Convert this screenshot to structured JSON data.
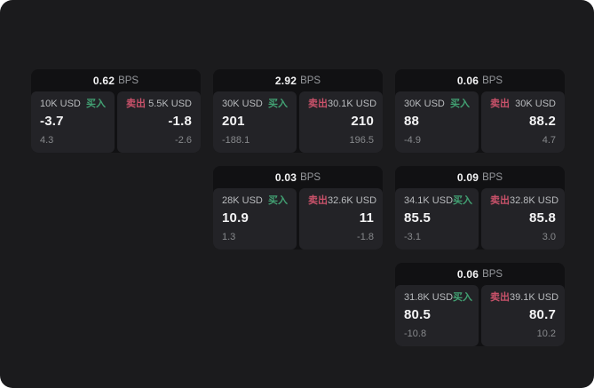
{
  "labels": {
    "bps": "BPS",
    "buy": "买入",
    "sell": "卖出"
  },
  "colors": {
    "app_background": "#1b1b1d",
    "card_background": "#111113",
    "panel_background": "#232327",
    "buy_green": "#42a173",
    "sell_red": "#c9526a"
  },
  "cards": [
    {
      "bps": "0.62",
      "buy": {
        "amount": "10K USD",
        "value": "-3.7",
        "sub": "4.3"
      },
      "sell": {
        "amount": "5.5K USD",
        "value": "-1.8",
        "sub": "-2.6"
      }
    },
    {
      "bps": "2.92",
      "buy": {
        "amount": "30K USD",
        "value": "201",
        "sub": "-188.1"
      },
      "sell": {
        "amount": "30.1K USD",
        "value": "210",
        "sub": "196.5"
      }
    },
    {
      "bps": "0.06",
      "buy": {
        "amount": "30K USD",
        "value": "88",
        "sub": "-4.9"
      },
      "sell": {
        "amount": "30K USD",
        "value": "88.2",
        "sub": "4.7"
      }
    },
    {
      "bps": "0.03",
      "buy": {
        "amount": "28K USD",
        "value": "10.9",
        "sub": "1.3"
      },
      "sell": {
        "amount": "32.6K USD",
        "value": "11",
        "sub": "-1.8"
      }
    },
    {
      "bps": "0.09",
      "buy": {
        "amount": "34.1K USD",
        "value": "85.5",
        "sub": "-3.1"
      },
      "sell": {
        "amount": "32.8K USD",
        "value": "85.8",
        "sub": "3.0"
      }
    },
    {
      "bps": "0.06",
      "buy": {
        "amount": "31.8K USD",
        "value": "80.5",
        "sub": "-10.8"
      },
      "sell": {
        "amount": "39.1K USD",
        "value": "80.7",
        "sub": "10.2"
      }
    }
  ]
}
